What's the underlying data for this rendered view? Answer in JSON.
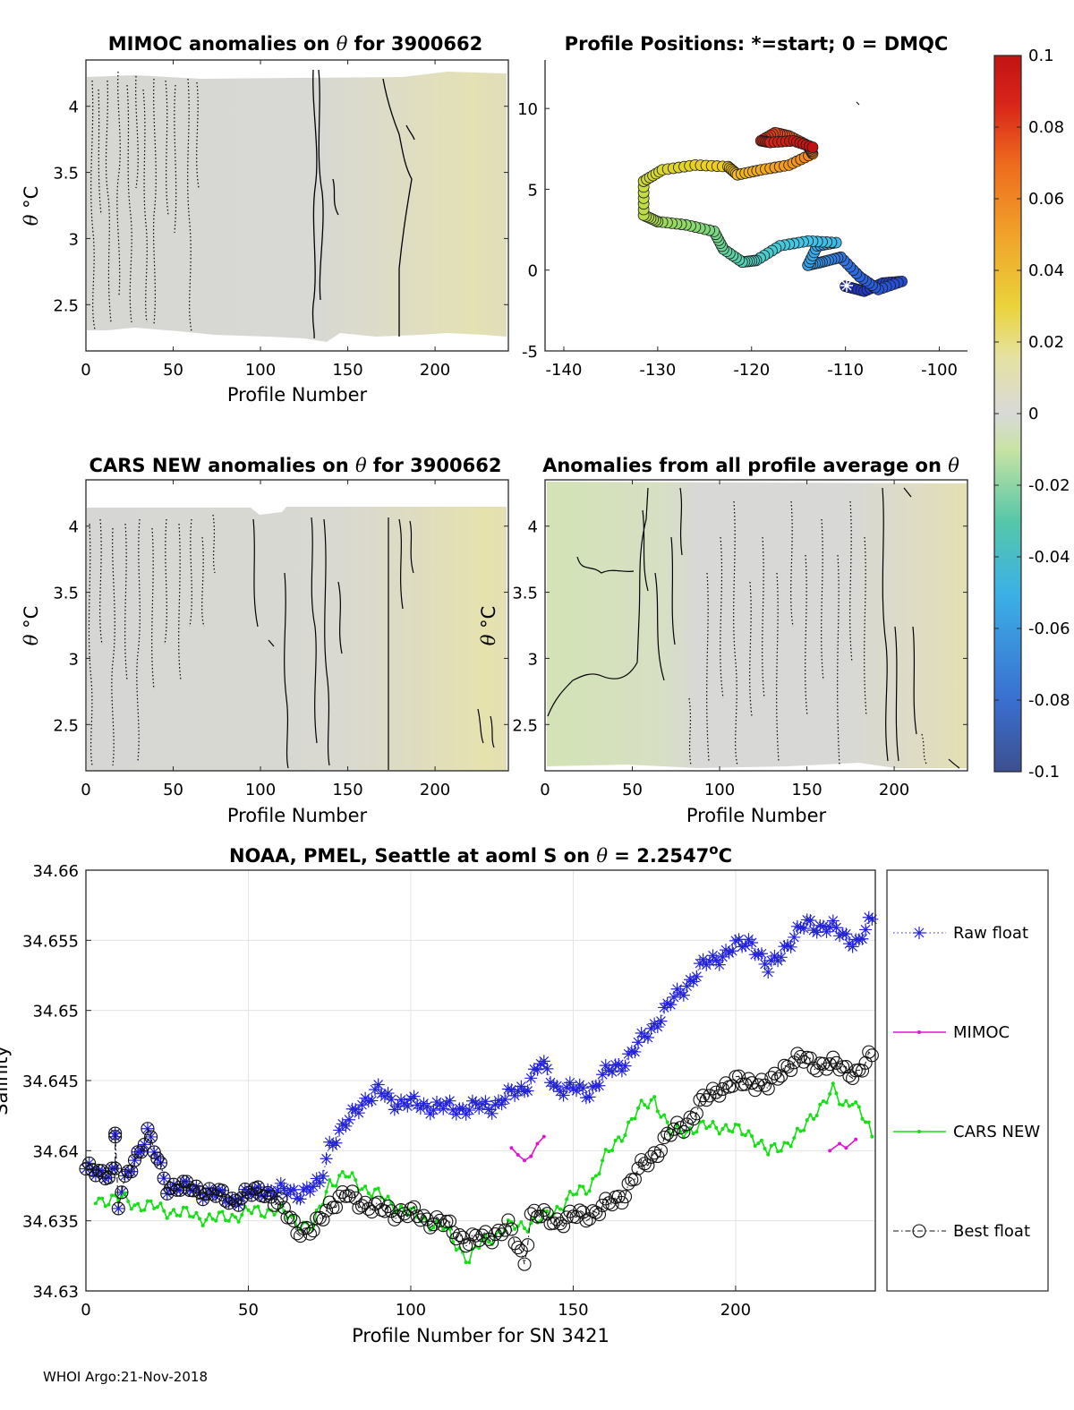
{
  "footer": "WHOI Argo:21-Nov-2018",
  "panels": {
    "mimoc": {
      "title_prefix": "MIMOC anomalies on ",
      "title_symbol": "θ",
      "title_suffix": "  for 3900662",
      "xlabel": "Profile Number",
      "ylabel_symbol": "θ",
      "ylabel_unit": "°C",
      "xticks": [
        "0",
        "50",
        "100",
        "150",
        "200"
      ],
      "yticks": [
        "2.5",
        "3",
        "3.5",
        "4"
      ]
    },
    "positions": {
      "title": "Profile Positions: *=start; 0 = DMQC",
      "xticks": [
        "-140",
        "-130",
        "-120",
        "-110",
        "-100"
      ],
      "yticks": [
        "-5",
        "0",
        "5",
        "10"
      ]
    },
    "cars": {
      "title_prefix": "CARS NEW anomalies on ",
      "title_symbol": "θ",
      "title_suffix": " for 3900662",
      "xlabel": "Profile Number",
      "ylabel_symbol": "θ",
      "ylabel_unit": "°C",
      "xticks": [
        "0",
        "50",
        "100",
        "150",
        "200"
      ],
      "yticks": [
        "2.5",
        "3",
        "3.5",
        "4"
      ]
    },
    "average": {
      "title_prefix": "Anomalies from all profile average on ",
      "title_symbol": "θ",
      "xlabel": "Profile Number",
      "ylabel_symbol": "θ",
      "ylabel_unit": "°C",
      "xticks": [
        "0",
        "50",
        "100",
        "150",
        "200"
      ],
      "yticks": [
        "2.5",
        "3",
        "3.5",
        "4"
      ]
    },
    "colorbar": {
      "ticks": [
        "0.1",
        "0.08",
        "0.06",
        "0.04",
        "0.02",
        "0",
        "-0.02",
        "-0.04",
        "-0.06",
        "-0.08",
        "-0.1"
      ],
      "range": [
        -0.1,
        0.1
      ]
    },
    "salinity": {
      "title_prefix": "NOAA, PMEL, Seattle at aoml S on ",
      "title_symbol": "θ",
      "title_mid": " = 2.2547",
      "title_sup": "o",
      "title_end": "C",
      "xlabel": "Profile Number for SN 3421",
      "ylabel": "Salinity",
      "xticks": [
        "0",
        "50",
        "100",
        "150",
        "200"
      ],
      "yticks": [
        "34.63",
        "34.635",
        "34.64",
        "34.645",
        "34.65",
        "34.655",
        "34.66"
      ],
      "legend": [
        "Raw float",
        "MIMOC",
        "CARS NEW",
        "Best float"
      ]
    }
  },
  "chart_data": [
    {
      "type": "heatmap",
      "title": "MIMOC anomalies on θ  for 3900662",
      "xlabel": "Profile Number",
      "ylabel": "θ °C",
      "xlim": [
        0,
        242
      ],
      "ylim": [
        2.15,
        4.35
      ],
      "color_range": [
        -0.1,
        0.1
      ],
      "description_values": {
        "profiles_0_70": 0.003,
        "profiles_70_180": 0.005,
        "profiles_180_242": 0.02
      }
    },
    {
      "type": "scatter",
      "title": "Profile Positions: *=start; 0 = DMQC",
      "xlim": [
        -142,
        -97
      ],
      "ylim": [
        -5,
        13
      ],
      "track_keypoints": [
        [
          -110,
          -1
        ],
        [
          -108,
          -1.3
        ],
        [
          -106,
          -0.8
        ],
        [
          -104,
          -0.7
        ],
        [
          -106.5,
          -1.2
        ],
        [
          -108.5,
          -0.4
        ],
        [
          -110.5,
          0.8
        ],
        [
          -112.5,
          0.5
        ],
        [
          -114,
          0.3
        ],
        [
          -113,
          1.5
        ],
        [
          -111,
          1.7
        ],
        [
          -114,
          1.8
        ],
        [
          -117,
          1.5
        ],
        [
          -119.5,
          0.6
        ],
        [
          -121,
          0.5
        ],
        [
          -123,
          1.3
        ],
        [
          -124,
          2.4
        ],
        [
          -127,
          2.8
        ],
        [
          -130,
          3.0
        ],
        [
          -131.5,
          3.4
        ],
        [
          -131.5,
          5.5
        ],
        [
          -129.5,
          6.2
        ],
        [
          -126,
          6.5
        ],
        [
          -122.5,
          6.4
        ],
        [
          -121.5,
          5.9
        ],
        [
          -119,
          6.2
        ],
        [
          -116,
          6.5
        ],
        [
          -113.5,
          7.2
        ],
        [
          -114,
          7.7
        ],
        [
          -116,
          8.3
        ],
        [
          -117.5,
          8.5
        ],
        [
          -119,
          8.0
        ],
        [
          -118,
          7.9
        ],
        [
          -115.5,
          8.0
        ],
        [
          -113.5,
          7.6
        ]
      ],
      "start": [
        -110,
        -1.0
      ]
    },
    {
      "type": "heatmap",
      "title": "CARS NEW anomalies on θ for 3900662",
      "xlabel": "Profile Number",
      "ylabel": "θ °C",
      "xlim": [
        0,
        242
      ],
      "ylim": [
        2.15,
        4.35
      ],
      "color_range": [
        -0.1,
        0.1
      ],
      "description_values": {
        "profiles_0_90": 0.004,
        "profiles_90_180": 0.008,
        "profiles_180_242": 0.022
      }
    },
    {
      "type": "heatmap",
      "title": "Anomalies from all profile average on θ",
      "xlabel": "Profile Number",
      "ylabel": "θ °C",
      "xlim": [
        0,
        242
      ],
      "ylim": [
        2.15,
        4.35
      ],
      "color_range": [
        -0.1,
        0.1
      ],
      "description_values": {
        "profiles_0_75": -0.018,
        "profiles_75_180": 0.002,
        "profiles_180_242": 0.015
      }
    },
    {
      "type": "line",
      "title": "NOAA, PMEL, Seattle at aoml S on θ = 2.2547°C",
      "xlabel": "Profile Number for SN 3421",
      "ylabel": "Salinity",
      "xlim": [
        0,
        243
      ],
      "ylim": [
        34.63,
        34.66
      ],
      "grid": true,
      "legend_position": "outside-right",
      "series": [
        {
          "name": "Raw float",
          "keypoints": [
            [
              0,
              34.6385
            ],
            [
              9,
              34.6385
            ],
            [
              9,
              34.641
            ],
            [
              10,
              34.636
            ],
            [
              13,
              34.6385
            ],
            [
              19,
              34.6412
            ],
            [
              25,
              34.6375
            ],
            [
              35,
              34.6372
            ],
            [
              45,
              34.6365
            ],
            [
              55,
              34.6372
            ],
            [
              65,
              34.637
            ],
            [
              72,
              34.6375
            ],
            [
              75,
              34.6405
            ],
            [
              80,
              34.6418
            ],
            [
              85,
              34.6435
            ],
            [
              90,
              34.6442
            ],
            [
              95,
              34.6435
            ],
            [
              105,
              34.6432
            ],
            [
              115,
              34.643
            ],
            [
              125,
              34.6432
            ],
            [
              135,
              34.6445
            ],
            [
              140,
              34.6462
            ],
            [
              145,
              34.6445
            ],
            [
              155,
              34.6442
            ],
            [
              160,
              34.6455
            ],
            [
              165,
              34.6462
            ],
            [
              170,
              34.6475
            ],
            [
              180,
              34.6505
            ],
            [
              190,
              34.6532
            ],
            [
              200,
              34.6545
            ],
            [
              205,
              34.655
            ],
            [
              210,
              34.6528
            ],
            [
              215,
              34.6545
            ],
            [
              222,
              34.6562
            ],
            [
              230,
              34.6558
            ],
            [
              238,
              34.6548
            ],
            [
              242,
              34.6565
            ]
          ]
        },
        {
          "name": "MIMOC",
          "segments": [
            [
              [
                131,
                34.6402
              ],
              [
                133,
                34.6397
              ],
              [
                135,
                34.6393
              ],
              [
                137,
                34.6396
              ],
              [
                139,
                34.6405
              ],
              [
                141,
                34.641
              ]
            ],
            [
              [
                229,
                34.64
              ],
              [
                232,
                34.6405
              ],
              [
                234,
                34.6402
              ],
              [
                237,
                34.6408
              ]
            ]
          ]
        },
        {
          "name": "CARS NEW",
          "keypoints": [
            [
              3,
              34.6365
            ],
            [
              10,
              34.6366
            ],
            [
              15,
              34.6362
            ],
            [
              20,
              34.636
            ],
            [
              30,
              34.6355
            ],
            [
              40,
              34.6351
            ],
            [
              50,
              34.6356
            ],
            [
              58,
              34.6358
            ],
            [
              65,
              34.635
            ],
            [
              70,
              34.6345
            ],
            [
              75,
              34.6378
            ],
            [
              80,
              34.6382
            ],
            [
              90,
              34.6368
            ],
            [
              100,
              34.6355
            ],
            [
              105,
              34.635
            ],
            [
              110,
              34.6345
            ],
            [
              118,
              34.6322
            ],
            [
              122,
              34.6335
            ],
            [
              130,
              34.6345
            ],
            [
              140,
              34.635
            ],
            [
              150,
              34.6368
            ],
            [
              155,
              34.6375
            ],
            [
              160,
              34.6395
            ],
            [
              165,
              34.6412
            ],
            [
              170,
              34.6428
            ],
            [
              175,
              34.6438
            ],
            [
              180,
              34.6412
            ],
            [
              185,
              34.6415
            ],
            [
              195,
              34.6418
            ],
            [
              200,
              34.6414
            ],
            [
              205,
              34.6412
            ],
            [
              210,
              34.6398
            ],
            [
              220,
              34.6412
            ],
            [
              225,
              34.643
            ],
            [
              230,
              34.6442
            ],
            [
              233,
              34.6432
            ],
            [
              236,
              34.6438
            ],
            [
              242,
              34.641
            ]
          ]
        },
        {
          "name": "Best float",
          "keypoints": [
            [
              0,
              34.6385
            ],
            [
              9,
              34.6385
            ],
            [
              9,
              34.641
            ],
            [
              10,
              34.636
            ],
            [
              13,
              34.6385
            ],
            [
              19,
              34.6412
            ],
            [
              25,
              34.6375
            ],
            [
              35,
              34.6372
            ],
            [
              45,
              34.6365
            ],
            [
              55,
              34.6372
            ],
            [
              60,
              34.636
            ],
            [
              65,
              34.6345
            ],
            [
              70,
              34.6342
            ],
            [
              75,
              34.6362
            ],
            [
              80,
              34.6368
            ],
            [
              90,
              34.6358
            ],
            [
              100,
              34.6355
            ],
            [
              110,
              34.6348
            ],
            [
              118,
              34.6335
            ],
            [
              125,
              34.634
            ],
            [
              130,
              34.6345
            ],
            [
              135,
              34.6322
            ],
            [
              137,
              34.6355
            ],
            [
              145,
              34.635
            ],
            [
              155,
              34.6355
            ],
            [
              160,
              34.636
            ],
            [
              165,
              34.6368
            ],
            [
              170,
              34.6385
            ],
            [
              175,
              34.6398
            ],
            [
              180,
              34.6412
            ],
            [
              185,
              34.642
            ],
            [
              190,
              34.6435
            ],
            [
              195,
              34.6445
            ],
            [
              200,
              34.6448
            ],
            [
              205,
              34.645
            ],
            [
              210,
              34.6445
            ],
            [
              215,
              34.646
            ],
            [
              220,
              34.6465
            ],
            [
              225,
              34.6462
            ],
            [
              232,
              34.646
            ],
            [
              238,
              34.6455
            ],
            [
              242,
              34.6468
            ]
          ]
        }
      ]
    }
  ]
}
